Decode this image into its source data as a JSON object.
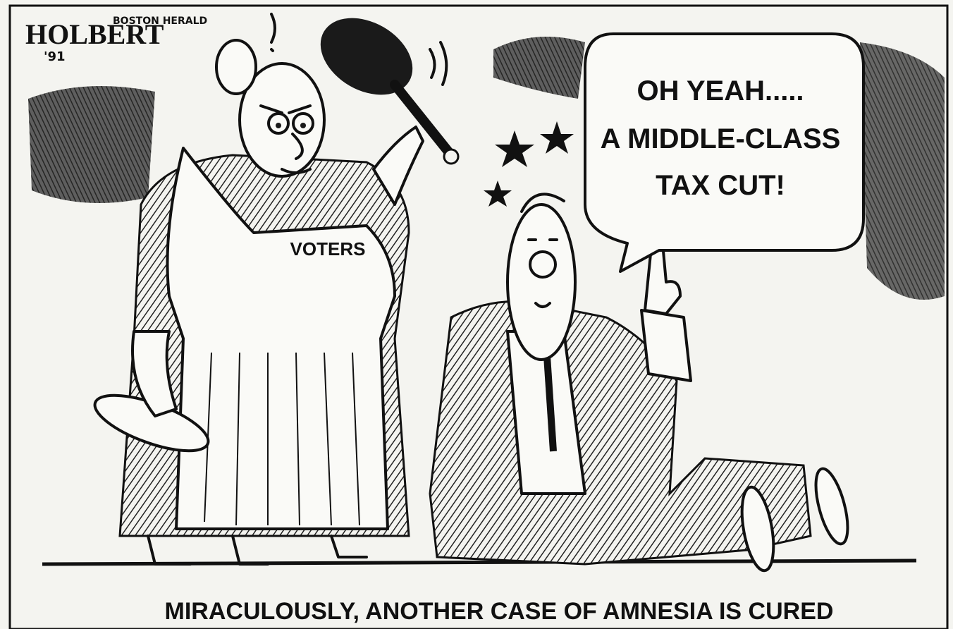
{
  "signature": {
    "artist": "HOLBERT",
    "paper": "BOSTON HERALD",
    "year": "'91"
  },
  "speech_bubble": {
    "lines": [
      "OH YEAH.....",
      "A MIDDLE-CLASS",
      "TAX CUT!"
    ]
  },
  "apron_label": "VOTERS",
  "caption": "MIRACULOUSLY, ANOTHER CASE OF AMNESIA IS CURED"
}
